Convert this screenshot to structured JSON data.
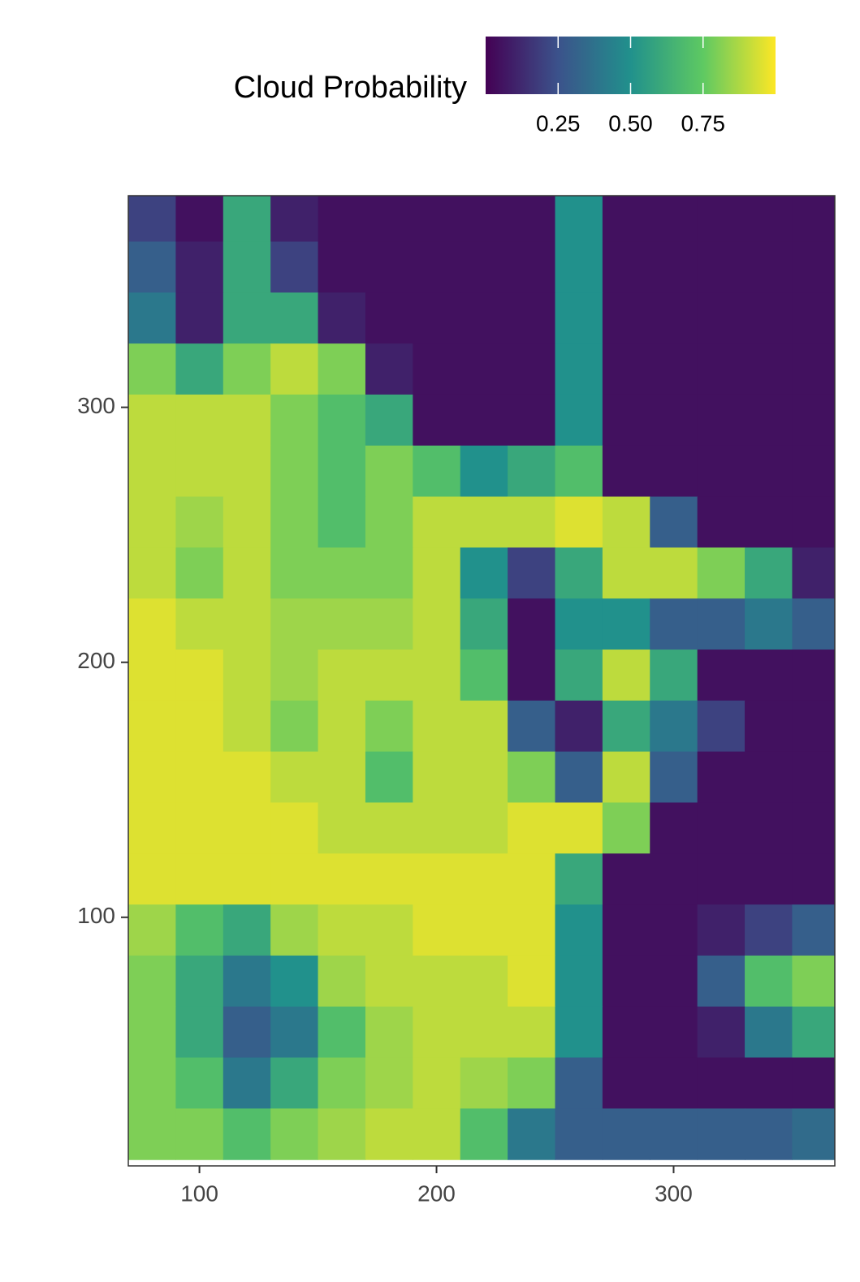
{
  "chart_data": {
    "type": "heatmap",
    "colorbar": {
      "title": "Cloud Probability",
      "lim": [
        0,
        1
      ],
      "ticks": [
        0.25,
        {
          "value": 0.5,
          "label": "0.50"
        },
        0.75
      ]
    },
    "colormap": "viridis",
    "xlim": [
      70,
      368
    ],
    "ylim": [
      2.5,
      383
    ],
    "xticks": [
      100,
      200,
      300
    ],
    "yticks": [
      100,
      200,
      300
    ],
    "x": [
      80,
      100,
      120,
      140,
      160,
      180,
      200,
      220,
      240,
      260,
      280,
      300,
      320,
      340,
      360
    ],
    "y": [
      375,
      355,
      335,
      315,
      295,
      275,
      255,
      235,
      215,
      195,
      175,
      155,
      135,
      115,
      95,
      75,
      55,
      35,
      15
    ],
    "z": [
      [
        0.2,
        0.05,
        0.6,
        0.1,
        0.05,
        0.05,
        0.05,
        0.05,
        0.05,
        0.5,
        0.05,
        0.05,
        0.05,
        0.05,
        0.05
      ],
      [
        0.3,
        0.1,
        0.6,
        0.2,
        0.05,
        0.05,
        0.05,
        0.05,
        0.05,
        0.5,
        0.05,
        0.05,
        0.05,
        0.05,
        0.05
      ],
      [
        0.4,
        0.1,
        0.6,
        0.6,
        0.1,
        0.05,
        0.05,
        0.05,
        0.05,
        0.5,
        0.05,
        0.05,
        0.05,
        0.05,
        0.05
      ],
      [
        0.8,
        0.6,
        0.8,
        0.9,
        0.8,
        0.1,
        0.05,
        0.05,
        0.05,
        0.5,
        0.05,
        0.05,
        0.05,
        0.05,
        0.05
      ],
      [
        0.9,
        0.9,
        0.9,
        0.8,
        0.7,
        0.6,
        0.05,
        0.05,
        0.05,
        0.5,
        0.05,
        0.05,
        0.05,
        0.05,
        0.05
      ],
      [
        0.9,
        0.9,
        0.9,
        0.8,
        0.7,
        0.8,
        0.7,
        0.5,
        0.6,
        0.7,
        0.05,
        0.05,
        0.05,
        0.05,
        0.05
      ],
      [
        0.9,
        0.85,
        0.9,
        0.8,
        0.7,
        0.8,
        0.9,
        0.9,
        0.9,
        0.95,
        0.9,
        0.3,
        0.05,
        0.05,
        0.05
      ],
      [
        0.9,
        0.8,
        0.9,
        0.8,
        0.8,
        0.8,
        0.9,
        0.5,
        0.2,
        0.6,
        0.9,
        0.9,
        0.8,
        0.6,
        0.1
      ],
      [
        0.95,
        0.9,
        0.9,
        0.85,
        0.85,
        0.85,
        0.9,
        0.6,
        0.05,
        0.5,
        0.5,
        0.3,
        0.3,
        0.4,
        0.3
      ],
      [
        0.95,
        0.95,
        0.9,
        0.85,
        0.9,
        0.9,
        0.9,
        0.7,
        0.05,
        0.6,
        0.9,
        0.6,
        0.05,
        0.05,
        0.05
      ],
      [
        0.95,
        0.95,
        0.9,
        0.8,
        0.9,
        0.8,
        0.9,
        0.9,
        0.3,
        0.1,
        0.6,
        0.4,
        0.2,
        0.05,
        0.05
      ],
      [
        0.95,
        0.95,
        0.95,
        0.9,
        0.9,
        0.7,
        0.9,
        0.9,
        0.8,
        0.3,
        0.9,
        0.3,
        0.05,
        0.05,
        0.05
      ],
      [
        0.95,
        0.95,
        0.95,
        0.95,
        0.9,
        0.9,
        0.9,
        0.9,
        0.95,
        0.95,
        0.8,
        0.05,
        0.05,
        0.05,
        0.05
      ],
      [
        0.95,
        0.95,
        0.95,
        0.95,
        0.95,
        0.95,
        0.95,
        0.95,
        0.95,
        0.6,
        0.05,
        0.05,
        0.05,
        0.05,
        0.05
      ],
      [
        0.85,
        0.7,
        0.6,
        0.85,
        0.9,
        0.9,
        0.95,
        0.95,
        0.95,
        0.5,
        0.05,
        0.05,
        0.1,
        0.2,
        0.3
      ],
      [
        0.8,
        0.6,
        0.4,
        0.5,
        0.85,
        0.9,
        0.9,
        0.9,
        0.95,
        0.5,
        0.05,
        0.05,
        0.3,
        0.7,
        0.8
      ],
      [
        0.8,
        0.6,
        0.3,
        0.4,
        0.7,
        0.85,
        0.9,
        0.9,
        0.9,
        0.5,
        0.05,
        0.05,
        0.1,
        0.4,
        0.6
      ],
      [
        0.8,
        0.7,
        0.4,
        0.6,
        0.8,
        0.85,
        0.9,
        0.85,
        0.8,
        0.3,
        0.05,
        0.05,
        0.05,
        0.05,
        0.05
      ],
      [
        0.8,
        0.8,
        0.7,
        0.8,
        0.85,
        0.9,
        0.9,
        0.7,
        0.4,
        0.3,
        0.3,
        0.3,
        0.3,
        0.3,
        0.35
      ]
    ]
  }
}
